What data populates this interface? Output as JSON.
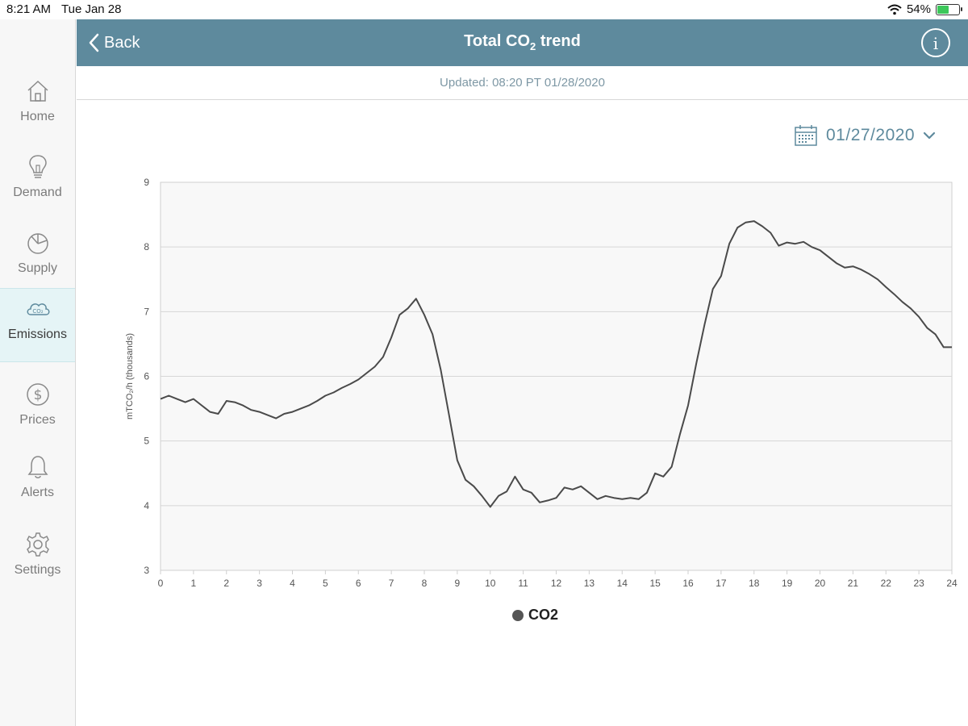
{
  "status": {
    "time": "8:21 AM",
    "date": "Tue Jan 28",
    "battery": "54%",
    "battery_level": 0.54
  },
  "sidebar": {
    "items": [
      {
        "label": "Home",
        "icon": "home-icon"
      },
      {
        "label": "Demand",
        "icon": "lightbulb-icon"
      },
      {
        "label": "Supply",
        "icon": "pie-chart-icon"
      },
      {
        "label": "Emissions",
        "icon": "co2-cloud-icon",
        "active": true
      },
      {
        "label": "Prices",
        "icon": "dollar-icon"
      },
      {
        "label": "Alerts",
        "icon": "bell-icon"
      },
      {
        "label": "Settings",
        "icon": "gear-icon"
      }
    ]
  },
  "header": {
    "back_label": "Back",
    "title_main": "Total CO",
    "title_sub": "2",
    "title_end": " trend",
    "info_label": "i"
  },
  "updated": "Updated: 08:20 PT 01/28/2020",
  "date_picker": {
    "value": "01/27/2020"
  },
  "colors": {
    "header": "#5e8a9d",
    "active_nav": "#e5f4f6",
    "line": "#4a4a4a"
  },
  "chart_data": {
    "type": "line",
    "ylabel": "mTCO₂/h (thousands)",
    "xlim": [
      0,
      24
    ],
    "ylim": [
      3,
      9
    ],
    "xticks": [
      0,
      1,
      2,
      3,
      4,
      5,
      6,
      7,
      8,
      9,
      10,
      11,
      12,
      13,
      14,
      15,
      16,
      17,
      18,
      19,
      20,
      21,
      22,
      23,
      24
    ],
    "yticks": [
      3,
      4,
      5,
      6,
      7,
      8,
      9
    ],
    "grid": true,
    "legend_position": "bottom-center",
    "series": [
      {
        "name": "CO2",
        "x": [
          0,
          0.25,
          0.5,
          0.75,
          1,
          1.25,
          1.5,
          1.75,
          2,
          2.25,
          2.5,
          2.75,
          3,
          3.25,
          3.5,
          3.75,
          4,
          4.25,
          4.5,
          4.75,
          5,
          5.25,
          5.5,
          5.75,
          6,
          6.25,
          6.5,
          6.75,
          7,
          7.25,
          7.5,
          7.75,
          8,
          8.25,
          8.5,
          8.75,
          9,
          9.25,
          9.5,
          9.75,
          10,
          10.25,
          10.5,
          10.75,
          11,
          11.25,
          11.5,
          11.75,
          12,
          12.25,
          12.5,
          12.75,
          13,
          13.25,
          13.5,
          13.75,
          14,
          14.25,
          14.5,
          14.75,
          15,
          15.25,
          15.5,
          15.75,
          16,
          16.25,
          16.5,
          16.75,
          17,
          17.25,
          17.5,
          17.75,
          18,
          18.25,
          18.5,
          18.75,
          19,
          19.25,
          19.5,
          19.75,
          20,
          20.25,
          20.5,
          20.75,
          21,
          21.25,
          21.5,
          21.75,
          22,
          22.25,
          22.5,
          22.75,
          23,
          23.25,
          23.5,
          23.75,
          24
        ],
        "values": [
          5.65,
          5.7,
          5.65,
          5.6,
          5.65,
          5.55,
          5.45,
          5.42,
          5.62,
          5.6,
          5.55,
          5.48,
          5.45,
          5.4,
          5.35,
          5.42,
          5.45,
          5.5,
          5.55,
          5.62,
          5.7,
          5.75,
          5.82,
          5.88,
          5.95,
          6.05,
          6.15,
          6.3,
          6.6,
          6.95,
          7.05,
          7.2,
          6.95,
          6.65,
          6.1,
          5.4,
          4.7,
          4.4,
          4.3,
          4.15,
          3.98,
          4.15,
          4.22,
          4.45,
          4.25,
          4.2,
          4.05,
          4.08,
          4.12,
          4.28,
          4.25,
          4.3,
          4.2,
          4.1,
          4.15,
          4.12,
          4.1,
          4.12,
          4.1,
          4.2,
          4.5,
          4.45,
          4.6,
          5.1,
          5.55,
          6.2,
          6.8,
          7.35,
          7.55,
          8.05,
          8.3,
          8.38,
          8.4,
          8.32,
          8.22,
          8.02,
          8.07,
          8.05,
          8.08,
          8.0,
          7.95,
          7.85,
          7.75,
          7.68,
          7.7,
          7.65,
          7.58,
          7.5,
          7.38,
          7.27,
          7.15,
          7.05,
          6.92,
          6.75,
          6.65,
          6.45,
          6.45
        ]
      }
    ]
  }
}
